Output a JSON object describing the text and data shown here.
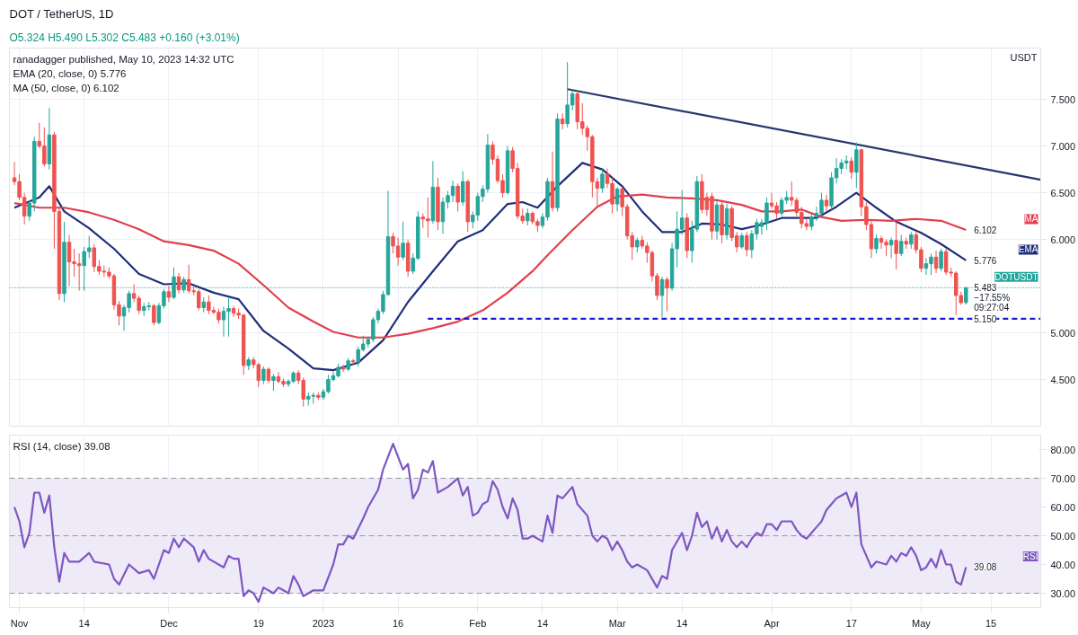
{
  "chart_data": [
    {
      "type": "candlestick",
      "title": "DOT / TetherUS, 1D",
      "subtitle": "O5.324 H5.490 L5.302 C5.483 +0.160 (+3.01%)",
      "ylabel": "USDT",
      "annotations": [
        "ranadagger published, May 10, 2023 14:32 UTC",
        "EMA (20, close, 0) 5.776",
        "MA (50, close, 0) 6.102",
        {
          "text": "6.102",
          "x": "2023-05-10",
          "y": 6.102
        },
        {
          "text": "5.776",
          "x": "2023-05-10",
          "y": 5.776
        },
        {
          "text": "5.483",
          "x": "2023-05-10",
          "y": 5.483
        },
        {
          "text": "−17.55%",
          "x": "2023-05-10",
          "y": 5.483
        },
        {
          "text": "09:27:04",
          "x": "2023-05-10",
          "y": 5.483
        },
        {
          "text": "5.150",
          "x": "2023-05-10",
          "y": 5.15
        }
      ],
      "x": [
        "2022-10-31",
        "2022-11-01",
        "2022-11-02",
        "2022-11-03",
        "2022-11-04",
        "2022-11-05",
        "2022-11-06",
        "2022-11-07",
        "2022-11-08",
        "2022-11-09",
        "2022-11-10",
        "2022-11-11",
        "2022-11-12",
        "2022-11-13",
        "2022-11-14",
        "2022-11-15",
        "2022-11-16",
        "2022-11-17",
        "2022-11-18",
        "2022-11-19",
        "2022-11-20",
        "2022-11-21",
        "2022-11-22",
        "2022-11-23",
        "2022-11-24",
        "2022-11-25",
        "2022-11-26",
        "2022-11-27",
        "2022-11-28",
        "2022-11-29",
        "2022-11-30",
        "2022-12-01",
        "2022-12-02",
        "2022-12-03",
        "2022-12-04",
        "2022-12-05",
        "2022-12-06",
        "2022-12-07",
        "2022-12-08",
        "2022-12-09",
        "2022-12-10",
        "2022-12-11",
        "2022-12-12",
        "2022-12-13",
        "2022-12-14",
        "2022-12-15",
        "2022-12-16",
        "2022-12-17",
        "2022-12-18",
        "2022-12-19",
        "2022-12-20",
        "2022-12-21",
        "2022-12-22",
        "2022-12-23",
        "2022-12-24",
        "2022-12-25",
        "2022-12-26",
        "2022-12-27",
        "2022-12-28",
        "2022-12-29",
        "2022-12-30",
        "2022-12-31",
        "2023-01-01",
        "2023-01-02",
        "2023-01-03",
        "2023-01-04",
        "2023-01-05",
        "2023-01-06",
        "2023-01-07",
        "2023-01-08",
        "2023-01-09",
        "2023-01-10",
        "2023-01-11",
        "2023-01-12",
        "2023-01-13",
        "2023-01-14",
        "2023-01-15",
        "2023-01-16",
        "2023-01-17",
        "2023-01-18",
        "2023-01-19",
        "2023-01-20",
        "2023-01-21",
        "2023-01-22",
        "2023-01-23",
        "2023-01-24",
        "2023-01-25",
        "2023-01-26",
        "2023-01-27",
        "2023-01-28",
        "2023-01-29",
        "2023-01-30",
        "2023-01-31",
        "2023-02-01",
        "2023-02-02",
        "2023-02-03",
        "2023-02-04",
        "2023-02-05",
        "2023-02-06",
        "2023-02-07",
        "2023-02-08",
        "2023-02-09",
        "2023-02-10",
        "2023-02-11",
        "2023-02-12",
        "2023-02-13",
        "2023-02-14",
        "2023-02-15",
        "2023-02-16",
        "2023-02-17",
        "2023-02-18",
        "2023-02-19",
        "2023-02-20",
        "2023-02-21",
        "2023-02-22",
        "2023-02-23",
        "2023-02-24",
        "2023-02-25",
        "2023-02-26",
        "2023-02-27",
        "2023-02-28",
        "2023-03-01",
        "2023-03-02",
        "2023-03-03",
        "2023-03-04",
        "2023-03-05",
        "2023-03-06",
        "2023-03-07",
        "2023-03-08",
        "2023-03-09",
        "2023-03-10",
        "2023-03-11",
        "2023-03-12",
        "2023-03-13",
        "2023-03-14",
        "2023-03-15",
        "2023-03-16",
        "2023-03-17",
        "2023-03-18",
        "2023-03-19",
        "2023-03-20",
        "2023-03-21",
        "2023-03-22",
        "2023-03-23",
        "2023-03-24",
        "2023-03-25",
        "2023-03-26",
        "2023-03-27",
        "2023-03-28",
        "2023-03-29",
        "2023-03-30",
        "2023-03-31",
        "2023-04-01",
        "2023-04-02",
        "2023-04-03",
        "2023-04-04",
        "2023-04-05",
        "2023-04-06",
        "2023-04-07",
        "2023-04-08",
        "2023-04-09",
        "2023-04-10",
        "2023-04-11",
        "2023-04-12",
        "2023-04-13",
        "2023-04-14",
        "2023-04-15",
        "2023-04-16",
        "2023-04-17",
        "2023-04-18",
        "2023-04-19",
        "2023-04-20",
        "2023-04-21",
        "2023-04-22",
        "2023-04-23",
        "2023-04-24",
        "2023-04-25",
        "2023-04-26",
        "2023-04-27",
        "2023-04-28",
        "2023-04-29",
        "2023-04-30",
        "2023-05-01",
        "2023-05-02",
        "2023-05-03",
        "2023-05-04",
        "2023-05-05",
        "2023-05-06",
        "2023-05-07",
        "2023-05-08",
        "2023-05-09",
        "2023-05-10"
      ],
      "ohlc": [
        [
          6.66,
          6.83,
          6.58,
          6.62
        ],
        [
          6.62,
          6.7,
          6.42,
          6.45
        ],
        [
          6.45,
          6.5,
          6.16,
          6.25
        ],
        [
          6.25,
          6.42,
          6.2,
          6.39
        ],
        [
          6.39,
          7.1,
          6.3,
          7.05
        ],
        [
          7.05,
          7.25,
          6.98,
          7.0
        ],
        [
          7.0,
          7.2,
          6.78,
          6.81
        ],
        [
          6.81,
          7.41,
          6.75,
          7.12
        ],
        [
          7.12,
          7.15,
          5.9,
          6.3
        ],
        [
          6.3,
          6.35,
          5.35,
          5.42
        ],
        [
          5.42,
          6.19,
          5.33,
          5.97
        ],
        [
          5.97,
          6.05,
          5.5,
          5.76
        ],
        [
          5.76,
          5.9,
          5.6,
          5.74
        ],
        [
          5.74,
          5.85,
          5.45,
          5.72
        ],
        [
          5.72,
          5.92,
          5.45,
          5.87
        ],
        [
          5.87,
          6.04,
          5.8,
          5.91
        ],
        [
          5.91,
          5.95,
          5.65,
          5.71
        ],
        [
          5.71,
          5.78,
          5.62,
          5.66
        ],
        [
          5.66,
          5.72,
          5.6,
          5.65
        ],
        [
          5.65,
          5.7,
          5.58,
          5.61
        ],
        [
          5.61,
          5.63,
          5.25,
          5.3
        ],
        [
          5.3,
          5.34,
          5.08,
          5.18
        ],
        [
          5.18,
          5.3,
          5.02,
          5.27
        ],
        [
          5.27,
          5.45,
          5.22,
          5.42
        ],
        [
          5.42,
          5.52,
          5.33,
          5.37
        ],
        [
          5.37,
          5.4,
          5.2,
          5.24
        ],
        [
          5.24,
          5.32,
          5.18,
          5.28
        ],
        [
          5.28,
          5.33,
          5.24,
          5.29
        ],
        [
          5.29,
          5.31,
          5.08,
          5.11
        ],
        [
          5.11,
          5.32,
          5.09,
          5.29
        ],
        [
          5.29,
          5.47,
          5.26,
          5.44
        ],
        [
          5.44,
          5.5,
          5.33,
          5.38
        ],
        [
          5.38,
          5.7,
          5.36,
          5.6
        ],
        [
          5.6,
          5.64,
          5.42,
          5.46
        ],
        [
          5.46,
          5.6,
          5.43,
          5.57
        ],
        [
          5.57,
          5.73,
          5.42,
          5.45
        ],
        [
          5.45,
          5.5,
          5.4,
          5.44
        ],
        [
          5.44,
          5.47,
          5.24,
          5.27
        ],
        [
          5.27,
          5.38,
          5.22,
          5.33
        ],
        [
          5.33,
          5.4,
          5.2,
          5.24
        ],
        [
          5.24,
          5.28,
          5.2,
          5.22
        ],
        [
          5.22,
          5.26,
          5.1,
          5.14
        ],
        [
          5.14,
          5.28,
          4.96,
          5.23
        ],
        [
          5.23,
          5.38,
          4.96,
          5.26
        ],
        [
          5.26,
          5.29,
          5.17,
          5.21
        ],
        [
          5.21,
          5.26,
          5.15,
          5.19
        ],
        [
          5.19,
          5.2,
          4.55,
          4.65
        ],
        [
          4.65,
          4.74,
          4.6,
          4.71
        ],
        [
          4.71,
          4.74,
          4.62,
          4.66
        ],
        [
          4.66,
          4.68,
          4.42,
          4.49
        ],
        [
          4.49,
          4.64,
          4.45,
          4.61
        ],
        [
          4.61,
          4.63,
          4.46,
          4.49
        ],
        [
          4.49,
          4.56,
          4.38,
          4.53
        ],
        [
          4.53,
          4.58,
          4.46,
          4.48
        ],
        [
          4.48,
          4.51,
          4.42,
          4.45
        ],
        [
          4.45,
          4.5,
          4.42,
          4.48
        ],
        [
          4.48,
          4.59,
          4.46,
          4.57
        ],
        [
          4.57,
          4.6,
          4.45,
          4.49
        ],
        [
          4.49,
          4.52,
          4.21,
          4.29
        ],
        [
          4.29,
          4.36,
          4.22,
          4.32
        ],
        [
          4.32,
          4.36,
          4.24,
          4.33
        ],
        [
          4.33,
          4.36,
          4.28,
          4.31
        ],
        [
          4.31,
          4.4,
          4.28,
          4.37
        ],
        [
          4.37,
          4.55,
          4.35,
          4.5
        ],
        [
          4.5,
          4.58,
          4.48,
          4.54
        ],
        [
          4.54,
          4.67,
          4.52,
          4.63
        ],
        [
          4.63,
          4.66,
          4.58,
          4.61
        ],
        [
          4.61,
          4.73,
          4.59,
          4.7
        ],
        [
          4.7,
          4.72,
          4.66,
          4.69
        ],
        [
          4.69,
          4.85,
          4.64,
          4.82
        ],
        [
          4.82,
          4.97,
          4.8,
          4.88
        ],
        [
          4.88,
          4.96,
          4.84,
          4.93
        ],
        [
          4.93,
          5.17,
          4.9,
          5.14
        ],
        [
          5.14,
          5.26,
          5.1,
          5.23
        ],
        [
          5.23,
          5.45,
          5.2,
          5.41
        ],
        [
          5.41,
          6.52,
          5.4,
          6.03
        ],
        [
          6.03,
          6.07,
          5.85,
          5.93
        ],
        [
          5.93,
          6.02,
          5.72,
          5.81
        ],
        [
          5.81,
          6.19,
          5.78,
          5.96
        ],
        [
          5.96,
          6.0,
          5.6,
          5.66
        ],
        [
          5.66,
          5.85,
          5.63,
          5.8
        ],
        [
          5.8,
          6.3,
          5.78,
          6.24
        ],
        [
          6.24,
          6.28,
          6.12,
          6.22
        ],
        [
          6.22,
          6.45,
          6.02,
          6.2
        ],
        [
          6.2,
          6.84,
          6.17,
          6.56
        ],
        [
          6.56,
          6.66,
          6.1,
          6.19
        ],
        [
          6.19,
          6.45,
          6.06,
          6.4
        ],
        [
          6.4,
          6.52,
          6.33,
          6.47
        ],
        [
          6.47,
          6.63,
          6.4,
          6.57
        ],
        [
          6.57,
          6.6,
          6.3,
          6.4
        ],
        [
          6.4,
          6.73,
          6.36,
          6.62
        ],
        [
          6.62,
          6.64,
          6.08,
          6.19
        ],
        [
          6.19,
          6.3,
          6.12,
          6.26
        ],
        [
          6.26,
          6.5,
          6.2,
          6.46
        ],
        [
          6.46,
          6.58,
          6.4,
          6.54
        ],
        [
          6.54,
          7.13,
          6.5,
          7.01
        ],
        [
          7.01,
          7.05,
          6.8,
          6.86
        ],
        [
          6.86,
          6.9,
          6.6,
          6.63
        ],
        [
          6.63,
          6.7,
          6.45,
          6.5
        ],
        [
          6.5,
          7.0,
          6.48,
          6.95
        ],
        [
          6.95,
          6.99,
          6.72,
          6.76
        ],
        [
          6.76,
          6.82,
          6.22,
          6.25
        ],
        [
          6.25,
          6.33,
          6.17,
          6.2
        ],
        [
          6.2,
          6.33,
          6.15,
          6.28
        ],
        [
          6.28,
          6.3,
          6.16,
          6.19
        ],
        [
          6.19,
          6.22,
          6.08,
          6.15
        ],
        [
          6.15,
          6.28,
          6.12,
          6.24
        ],
        [
          6.24,
          6.66,
          6.2,
          6.62
        ],
        [
          6.62,
          6.94,
          6.3,
          6.34
        ],
        [
          6.34,
          7.35,
          6.3,
          7.29
        ],
        [
          7.29,
          7.35,
          7.18,
          7.24
        ],
        [
          7.24,
          7.9,
          7.2,
          7.44
        ],
        [
          7.44,
          7.6,
          7.38,
          7.56
        ],
        [
          7.56,
          7.6,
          7.18,
          7.26
        ],
        [
          7.26,
          7.46,
          7.12,
          7.19
        ],
        [
          7.19,
          7.22,
          6.95,
          7.1
        ],
        [
          7.1,
          7.12,
          6.45,
          6.62
        ],
        [
          6.62,
          6.66,
          6.35,
          6.55
        ],
        [
          6.55,
          6.75,
          6.5,
          6.7
        ],
        [
          6.7,
          6.76,
          6.55,
          6.6
        ],
        [
          6.6,
          6.66,
          6.28,
          6.38
        ],
        [
          6.38,
          6.56,
          6.3,
          6.54
        ],
        [
          6.54,
          6.56,
          6.25,
          6.35
        ],
        [
          6.35,
          6.38,
          6.0,
          6.04
        ],
        [
          6.04,
          6.08,
          5.78,
          5.92
        ],
        [
          5.92,
          6.02,
          5.86,
          5.99
        ],
        [
          5.99,
          6.04,
          5.9,
          5.93
        ],
        [
          5.93,
          5.97,
          5.75,
          5.86
        ],
        [
          5.86,
          5.88,
          5.55,
          5.61
        ],
        [
          5.61,
          5.64,
          5.35,
          5.4
        ],
        [
          5.4,
          5.6,
          5.17,
          5.57
        ],
        [
          5.57,
          5.6,
          5.23,
          5.48
        ],
        [
          5.48,
          5.96,
          5.45,
          5.9
        ],
        [
          5.9,
          6.3,
          5.7,
          6.11
        ],
        [
          6.11,
          6.53,
          6.05,
          6.23
        ],
        [
          6.23,
          6.28,
          5.8,
          5.88
        ],
        [
          5.88,
          6.2,
          5.75,
          6.11
        ],
        [
          6.11,
          6.68,
          6.08,
          6.62
        ],
        [
          6.62,
          6.7,
          6.28,
          6.32
        ],
        [
          6.45,
          6.5,
          6.25,
          6.32
        ],
        [
          6.46,
          6.5,
          6.0,
          6.09
        ],
        [
          6.09,
          6.42,
          6.0,
          6.37
        ],
        [
          6.37,
          6.4,
          5.96,
          6.05
        ],
        [
          6.05,
          6.38,
          6.0,
          6.33
        ],
        [
          6.33,
          6.36,
          5.98,
          6.02
        ],
        [
          6.04,
          6.08,
          5.86,
          5.92
        ],
        [
          5.92,
          6.07,
          5.9,
          6.04
        ],
        [
          6.04,
          6.08,
          5.82,
          5.89
        ],
        [
          5.89,
          6.1,
          5.8,
          6.06
        ],
        [
          6.06,
          6.22,
          6.0,
          6.18
        ],
        [
          6.14,
          6.22,
          6.05,
          6.18
        ],
        [
          6.18,
          6.45,
          6.1,
          6.39
        ],
        [
          6.39,
          6.5,
          6.33,
          6.36
        ],
        [
          6.36,
          6.4,
          6.22,
          6.28
        ],
        [
          6.28,
          6.45,
          6.25,
          6.42
        ],
        [
          6.42,
          6.52,
          6.38,
          6.45
        ],
        [
          6.45,
          6.62,
          6.36,
          6.42
        ],
        [
          6.42,
          6.45,
          6.25,
          6.29
        ],
        [
          6.29,
          6.35,
          6.12,
          6.17
        ],
        [
          6.17,
          6.22,
          6.1,
          6.14
        ],
        [
          6.14,
          6.28,
          6.1,
          6.24
        ],
        [
          6.24,
          6.35,
          6.2,
          6.28
        ],
        [
          6.28,
          6.5,
          6.25,
          6.42
        ],
        [
          6.42,
          6.48,
          6.3,
          6.36
        ],
        [
          6.36,
          6.72,
          6.32,
          6.66
        ],
        [
          6.66,
          6.87,
          6.6,
          6.76
        ],
        [
          6.76,
          6.86,
          6.7,
          6.82
        ],
        [
          6.82,
          6.9,
          6.75,
          6.84
        ],
        [
          6.84,
          6.88,
          6.65,
          6.72
        ],
        [
          6.72,
          7.04,
          6.55,
          6.96
        ],
        [
          6.96,
          6.97,
          6.25,
          6.35
        ],
        [
          6.35,
          6.4,
          6.1,
          6.16
        ],
        [
          6.16,
          6.22,
          5.8,
          5.9
        ],
        [
          5.9,
          6.05,
          5.85,
          6.01
        ],
        [
          6.01,
          6.04,
          5.9,
          5.97
        ],
        [
          5.97,
          6.0,
          5.82,
          5.94
        ],
        [
          5.94,
          6.02,
          5.8,
          5.99
        ],
        [
          5.99,
          6.19,
          5.68,
          5.85
        ],
        [
          5.85,
          6.05,
          5.82,
          5.98
        ],
        [
          5.98,
          6.02,
          5.9,
          5.95
        ],
        [
          5.95,
          6.08,
          5.9,
          6.05
        ],
        [
          6.05,
          6.08,
          5.85,
          5.89
        ],
        [
          5.89,
          5.92,
          5.65,
          5.69
        ],
        [
          5.69,
          5.8,
          5.62,
          5.74
        ],
        [
          5.74,
          5.85,
          5.62,
          5.81
        ],
        [
          5.81,
          5.88,
          5.64,
          5.69
        ],
        [
          5.69,
          5.9,
          5.66,
          5.87
        ],
        [
          5.87,
          5.9,
          5.62,
          5.65
        ],
        [
          5.65,
          5.7,
          5.6,
          5.64
        ],
        [
          5.64,
          5.66,
          5.19,
          5.4
        ],
        [
          5.4,
          5.44,
          5.3,
          5.323
        ],
        [
          5.324,
          5.49,
          5.302,
          5.483
        ]
      ],
      "series": [
        {
          "name": "EMA",
          "type": "line",
          "color": "#1f2f7a",
          "x": [
            "2022-10-31",
            "2022-11-05",
            "2022-11-07",
            "2022-11-10",
            "2022-11-15",
            "2022-11-20",
            "2022-11-25",
            "2022-11-30",
            "2022-12-05",
            "2022-12-10",
            "2022-12-15",
            "2022-12-20",
            "2022-12-25",
            "2022-12-30",
            "2023-01-03",
            "2023-01-08",
            "2023-01-13",
            "2023-01-18",
            "2023-01-23",
            "2023-01-28",
            "2023-02-02",
            "2023-02-07",
            "2023-02-10",
            "2023-02-13",
            "2023-02-17",
            "2023-02-22",
            "2023-02-26",
            "2023-03-02",
            "2023-03-06",
            "2023-03-10",
            "2023-03-14",
            "2023-03-18",
            "2023-03-22",
            "2023-03-26",
            "2023-03-30",
            "2023-04-03",
            "2023-04-07",
            "2023-04-10",
            "2023-04-14",
            "2023-04-18",
            "2023-04-22",
            "2023-04-26",
            "2023-05-01",
            "2023-05-05",
            "2023-05-10"
          ],
          "values": [
            6.34,
            6.45,
            6.57,
            6.3,
            6.12,
            5.9,
            5.63,
            5.52,
            5.53,
            5.43,
            5.36,
            5.02,
            4.83,
            4.62,
            4.6,
            4.68,
            4.92,
            5.33,
            5.66,
            5.98,
            6.1,
            6.38,
            6.4,
            6.34,
            6.57,
            6.82,
            6.75,
            6.57,
            6.3,
            6.08,
            6.08,
            6.17,
            6.16,
            6.11,
            6.16,
            6.23,
            6.23,
            6.23,
            6.35,
            6.5,
            6.34,
            6.19,
            6.07,
            5.95,
            5.776
          ]
        },
        {
          "name": "MA",
          "type": "line",
          "color": "#e0404d",
          "x": [
            "2022-10-31",
            "2022-11-05",
            "2022-11-10",
            "2022-11-15",
            "2022-11-20",
            "2022-11-25",
            "2022-11-30",
            "2022-12-05",
            "2022-12-10",
            "2022-12-15",
            "2022-12-20",
            "2022-12-25",
            "2022-12-30",
            "2023-01-03",
            "2023-01-08",
            "2023-01-13",
            "2023-01-18",
            "2023-01-23",
            "2023-01-28",
            "2023-02-02",
            "2023-02-07",
            "2023-02-12",
            "2023-02-15",
            "2023-02-20",
            "2023-02-25",
            "2023-03-01",
            "2023-03-06",
            "2023-03-11",
            "2023-03-16",
            "2023-03-21",
            "2023-03-26",
            "2023-03-30",
            "2023-04-03",
            "2023-04-07",
            "2023-04-11",
            "2023-04-15",
            "2023-04-20",
            "2023-04-25",
            "2023-04-30",
            "2023-05-05",
            "2023-05-10"
          ],
          "values": [
            6.39,
            6.34,
            6.34,
            6.29,
            6.21,
            6.11,
            5.98,
            5.94,
            5.88,
            5.74,
            5.51,
            5.27,
            5.12,
            5.01,
            4.95,
            4.95,
            4.99,
            5.05,
            5.12,
            5.24,
            5.43,
            5.66,
            5.83,
            6.1,
            6.35,
            6.46,
            6.48,
            6.45,
            6.44,
            6.42,
            6.37,
            6.3,
            6.3,
            6.32,
            6.24,
            6.2,
            6.21,
            6.2,
            6.22,
            6.2,
            6.102
          ]
        },
        {
          "type": "line",
          "color": "#27366e",
          "x": [
            "2023-02-19",
            "2023-05-25"
          ],
          "values": [
            7.61,
            6.64
          ]
        },
        {
          "type": "line",
          "color": "#1a1ad6",
          "line_style": "dashed",
          "x": [
            "2023-01-22",
            "2023-05-25"
          ],
          "values": [
            5.15,
            5.15
          ]
        }
      ],
      "ref_lines": [
        {
          "axis": "y",
          "value": 5.483,
          "label": "DOTUSDT",
          "color": "#26a69a",
          "line_style": "dotted"
        }
      ],
      "xlim": [
        "2022-10-30",
        "2023-05-25"
      ],
      "xticks": [
        {
          "value": "2022-11-01",
          "label": null
        },
        {
          "value": "2022-11-14",
          "label": null
        },
        {
          "value": "2022-12-01",
          "label": null
        },
        {
          "value": "2022-12-19",
          "label": null
        },
        {
          "value": "2023-01-01",
          "label": null
        },
        {
          "value": "2023-01-16",
          "label": null
        },
        {
          "value": "2023-02-01",
          "label": null
        },
        {
          "value": "2023-02-14",
          "label": null
        },
        {
          "value": "2023-03-01",
          "label": null
        },
        {
          "value": "2023-03-14",
          "label": null
        },
        {
          "value": "2023-04-01",
          "label": null
        },
        {
          "value": "2023-04-17",
          "label": null
        },
        {
          "value": "2023-05-01",
          "label": null
        },
        {
          "value": "2023-05-15",
          "label": null
        }
      ],
      "ylim": [
        4.0,
        8.05
      ],
      "yticks": [
        {
          "value": 4.5,
          "label": "4.500"
        },
        {
          "value": 5.0,
          "label": "5.000"
        },
        {
          "value": 6.0,
          "label": "6.000"
        },
        {
          "value": 6.5,
          "label": "6.500"
        },
        {
          "value": 7.0,
          "label": "7.000"
        },
        {
          "value": 7.5,
          "label": "7.500"
        }
      ],
      "grid": true,
      "tick_labels": "y"
    },
    {
      "type": "line",
      "annotations": [
        "RSI (14, close) 39.08",
        {
          "text": "39.08",
          "x": "2023-05-10",
          "y": 39.08
        }
      ],
      "series": [
        {
          "name": "RSI",
          "color": "#7e57c2",
          "x": [
            "2022-10-31",
            "2022-11-01",
            "2022-11-02",
            "2022-11-03",
            "2022-11-04",
            "2022-11-05",
            "2022-11-06",
            "2022-11-07",
            "2022-11-08",
            "2022-11-09",
            "2022-11-10",
            "2022-11-11",
            "2022-11-13",
            "2022-11-15",
            "2022-11-16",
            "2022-11-19",
            "2022-11-20",
            "2022-11-21",
            "2022-11-23",
            "2022-11-25",
            "2022-11-27",
            "2022-11-28",
            "2022-11-30",
            "2022-12-01",
            "2022-12-02",
            "2022-12-03",
            "2022-12-04",
            "2022-12-06",
            "2022-12-07",
            "2022-12-08",
            "2022-12-09",
            "2022-12-12",
            "2022-12-13",
            "2022-12-14",
            "2022-12-15",
            "2022-12-16",
            "2022-12-17",
            "2022-12-18",
            "2022-12-19",
            "2022-12-20",
            "2022-12-22",
            "2022-12-23",
            "2022-12-24",
            "2022-12-25",
            "2022-12-26",
            "2022-12-27",
            "2022-12-28",
            "2022-12-30",
            "2023-01-01",
            "2023-01-03",
            "2023-01-04",
            "2023-01-05",
            "2023-01-06",
            "2023-01-07",
            "2023-01-09",
            "2023-01-10",
            "2023-01-12",
            "2023-01-13",
            "2023-01-15",
            "2023-01-17",
            "2023-01-18",
            "2023-01-19",
            "2023-01-20",
            "2023-01-21",
            "2023-01-22",
            "2023-01-23",
            "2023-01-24",
            "2023-01-26",
            "2023-01-28",
            "2023-01-29",
            "2023-01-30",
            "2023-01-31",
            "2023-02-01",
            "2023-02-02",
            "2023-02-03",
            "2023-02-04",
            "2023-02-05",
            "2023-02-06",
            "2023-02-07",
            "2023-02-08",
            "2023-02-09",
            "2023-02-10",
            "2023-02-11",
            "2023-02-12",
            "2023-02-14",
            "2023-02-15",
            "2023-02-16",
            "2023-02-17",
            "2023-02-18",
            "2023-02-20",
            "2023-02-21",
            "2023-02-23",
            "2023-02-24",
            "2023-02-25",
            "2023-02-26",
            "2023-02-27",
            "2023-02-28",
            "2023-03-01",
            "2023-03-02",
            "2023-03-03",
            "2023-03-04",
            "2023-03-05",
            "2023-03-07",
            "2023-03-09",
            "2023-03-10",
            "2023-03-11",
            "2023-03-12",
            "2023-03-14",
            "2023-03-15",
            "2023-03-16",
            "2023-03-17",
            "2023-03-18",
            "2023-03-19",
            "2023-03-20",
            "2023-03-21",
            "2023-03-22",
            "2023-03-23",
            "2023-03-24",
            "2023-03-25",
            "2023-03-26",
            "2023-03-27",
            "2023-03-28",
            "2023-03-29",
            "2023-03-30",
            "2023-03-31",
            "2023-04-01",
            "2023-04-02",
            "2023-04-03",
            "2023-04-04",
            "2023-04-05",
            "2023-04-06",
            "2023-04-07",
            "2023-04-08",
            "2023-04-09",
            "2023-04-10",
            "2023-04-11",
            "2023-04-12",
            "2023-04-13",
            "2023-04-14",
            "2023-04-15",
            "2023-04-16",
            "2023-04-17",
            "2023-04-18",
            "2023-04-19",
            "2023-04-20",
            "2023-04-21",
            "2023-04-22",
            "2023-04-24",
            "2023-04-25",
            "2023-04-26",
            "2023-04-27",
            "2023-04-28",
            "2023-04-29",
            "2023-04-30",
            "2023-05-01",
            "2023-05-02",
            "2023-05-03",
            "2023-05-04",
            "2023-05-05",
            "2023-05-06",
            "2023-05-07",
            "2023-05-08",
            "2023-05-09",
            "2023-05-10"
          ],
          "values": [
            60,
            55,
            46,
            51,
            65,
            65,
            58,
            64,
            46,
            34,
            44,
            41,
            41,
            44,
            41,
            40,
            35,
            33,
            40,
            37,
            38,
            35,
            45,
            44,
            49,
            46,
            49,
            46,
            41,
            45,
            42,
            39,
            43,
            42,
            42,
            29,
            31,
            30,
            27,
            32,
            30,
            32,
            31,
            30,
            36,
            33,
            29,
            31,
            31,
            40,
            47,
            47,
            50,
            49,
            56,
            60,
            66,
            73,
            82,
            73,
            75,
            63,
            66,
            73,
            72,
            76,
            65,
            67,
            70,
            64,
            67,
            57,
            58,
            61,
            62,
            69,
            66,
            60,
            56,
            63,
            59,
            49,
            49,
            50,
            48,
            57,
            51,
            64,
            63,
            67,
            61,
            57,
            50,
            48,
            50,
            49,
            45,
            48,
            45,
            41,
            39,
            40,
            38,
            32,
            36,
            35,
            45,
            51,
            45,
            50,
            58,
            53,
            55,
            49,
            53,
            48,
            52,
            48,
            46,
            48,
            46,
            49,
            51,
            50,
            54,
            54,
            52,
            55,
            55,
            55,
            52,
            50,
            49,
            51,
            53,
            55,
            59,
            61,
            63,
            64,
            65,
            60,
            65,
            47,
            43,
            39,
            41,
            40,
            43,
            41,
            44,
            43,
            46,
            43,
            38,
            39,
            42,
            39,
            45,
            40,
            40,
            34,
            33,
            39.08
          ]
        }
      ],
      "ref_lines": [
        {
          "axis": "y",
          "value": 70,
          "color": "#9598a1",
          "line_style": "dashed"
        },
        {
          "axis": "y",
          "value": 50,
          "color": "#9598a1",
          "line_style": "dashed"
        },
        {
          "axis": "y",
          "value": 30,
          "color": "#9598a1",
          "line_style": "dashed"
        }
      ],
      "bands": [
        {
          "axis": "y",
          "from": 30,
          "to": 70,
          "color": "#efeaf8"
        }
      ],
      "xlim": [
        "2022-10-30",
        "2023-05-25"
      ],
      "xticks": [
        {
          "value": "2022-11-01",
          "label": "Nov"
        },
        {
          "value": "2022-11-14",
          "label": "14"
        },
        {
          "value": "2022-12-01",
          "label": "Dec"
        },
        {
          "value": "2022-12-19",
          "label": "19"
        },
        {
          "value": "2023-01-01",
          "label": "2023"
        },
        {
          "value": "2023-01-16",
          "label": "16"
        },
        {
          "value": "2023-02-01",
          "label": "Feb"
        },
        {
          "value": "2023-02-14",
          "label": "14"
        },
        {
          "value": "2023-03-01",
          "label": "Mar"
        },
        {
          "value": "2023-03-14",
          "label": "14"
        },
        {
          "value": "2023-04-01",
          "label": "Apr"
        },
        {
          "value": "2023-04-17",
          "label": "17"
        },
        {
          "value": "2023-05-01",
          "label": "May"
        },
        {
          "value": "2023-05-15",
          "label": "15"
        }
      ],
      "ylim": [
        25,
        85
      ],
      "yticks": [
        {
          "value": 30,
          "label": "30.00"
        },
        {
          "value": 40,
          "label": "40.00"
        },
        {
          "value": 50,
          "label": "50.00"
        },
        {
          "value": 60,
          "label": "60.00"
        },
        {
          "value": 70,
          "label": "70.00"
        },
        {
          "value": 80,
          "label": "80.00"
        }
      ],
      "grid": "x"
    }
  ]
}
